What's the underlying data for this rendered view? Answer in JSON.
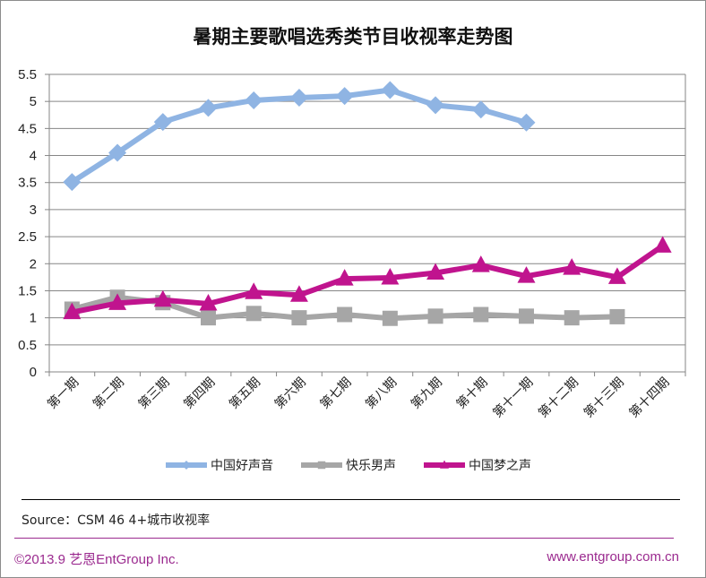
{
  "chart_data": {
    "type": "line",
    "title": "暑期主要歌唱选秀类节目收视率走势图",
    "xlabel": "",
    "ylabel": "",
    "ylim": [
      0,
      5.5
    ],
    "yticks": [
      "0",
      "0.5",
      "1",
      "1.5",
      "2",
      "2.5",
      "3",
      "3.5",
      "4",
      "4.5",
      "5",
      "5.5"
    ],
    "grid": true,
    "legend_position": "bottom",
    "categories": [
      "第一期",
      "第二期",
      "第三期",
      "第四期",
      "第五期",
      "第六期",
      "第七期",
      "第八期",
      "第九期",
      "第十期",
      "第十一期",
      "第十二期",
      "第十三期",
      "第十四期"
    ],
    "series": [
      {
        "name": "中国好声音",
        "color": "#8fb4e3",
        "marker": "diamond",
        "values": [
          3.51,
          4.05,
          4.62,
          4.88,
          5.02,
          5.07,
          5.1,
          5.21,
          4.93,
          4.85,
          4.61,
          null,
          null,
          null
        ]
      },
      {
        "name": "快乐男声",
        "color": "#a6a6a6",
        "marker": "square",
        "values": [
          1.16,
          1.38,
          1.28,
          1.0,
          1.08,
          1.0,
          1.06,
          0.99,
          1.03,
          1.06,
          1.03,
          1.0,
          1.02,
          null
        ]
      },
      {
        "name": "中国梦之声",
        "color": "#c0148e",
        "marker": "triangle",
        "values": [
          1.1,
          1.27,
          1.33,
          1.26,
          1.47,
          1.42,
          1.72,
          1.74,
          1.83,
          1.97,
          1.77,
          1.92,
          1.75,
          2.33
        ]
      }
    ]
  },
  "source_text": "Source：CSM 46 4+城市收视率",
  "footer": {
    "left": "©2013.9  艺恩EntGroup Inc.",
    "right": "www.entgroup.com.cn"
  }
}
